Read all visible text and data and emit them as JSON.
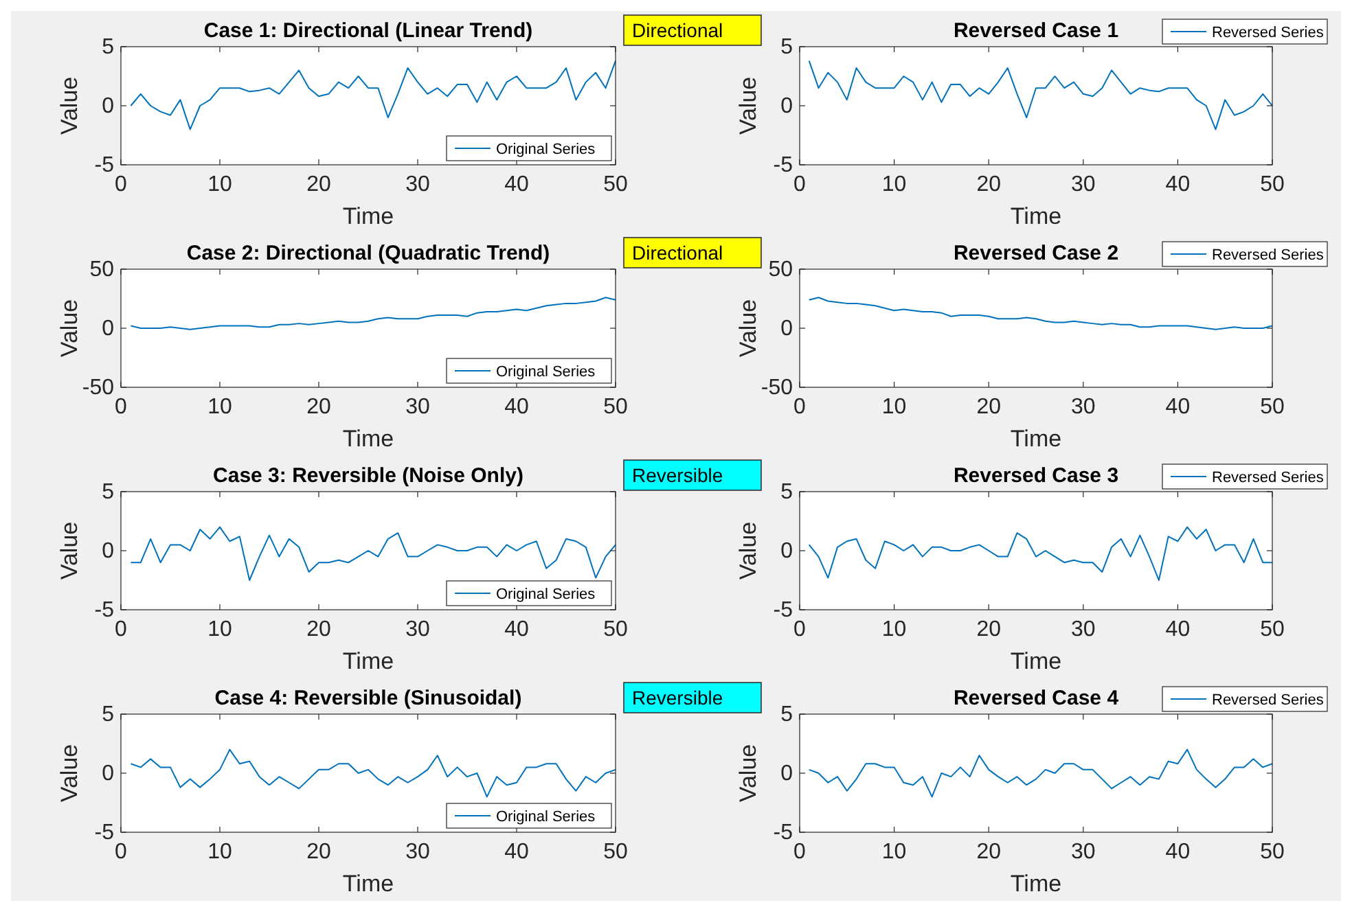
{
  "chart_data": [
    {
      "type": "line",
      "title": "Case 1: Directional (Linear Trend)",
      "xlabel": "Time",
      "ylabel": "Value",
      "x": [
        1,
        2,
        3,
        4,
        5,
        6,
        7,
        8,
        9,
        10,
        11,
        12,
        13,
        14,
        15,
        16,
        17,
        18,
        19,
        20,
        21,
        22,
        23,
        24,
        25,
        26,
        27,
        28,
        29,
        30,
        31,
        32,
        33,
        34,
        35,
        36,
        37,
        38,
        39,
        40,
        41,
        42,
        43,
        44,
        45,
        46,
        47,
        48,
        49,
        50
      ],
      "xlim": [
        0,
        50
      ],
      "xticks": [
        0,
        10,
        20,
        30,
        40,
        50
      ],
      "ylim": [
        -5,
        5
      ],
      "yticks": [
        -5,
        0,
        5
      ],
      "legend": "bottom right",
      "series": [
        {
          "name": "Original Series",
          "color": "#0072bd",
          "values": [
            0,
            1,
            0,
            -0.5,
            -0.8,
            0.5,
            -2,
            0,
            0.5,
            1.5,
            1.5,
            1.5,
            1.2,
            1.3,
            1.5,
            1,
            2,
            3,
            1.5,
            0.8,
            1,
            2,
            1.5,
            2.5,
            1.5,
            1.5,
            -1,
            1,
            3.2,
            2,
            1,
            1.5,
            0.8,
            1.8,
            1.8,
            0.3,
            2,
            0.5,
            2,
            2.5,
            1.5,
            1.5,
            1.5,
            2,
            3.2,
            0.5,
            2,
            2.8,
            1.5,
            3.8
          ]
        }
      ]
    },
    {
      "type": "line",
      "title": "Reversed Case 1",
      "xlabel": "Time",
      "ylabel": "Value",
      "x": [
        1,
        2,
        3,
        4,
        5,
        6,
        7,
        8,
        9,
        10,
        11,
        12,
        13,
        14,
        15,
        16,
        17,
        18,
        19,
        20,
        21,
        22,
        23,
        24,
        25,
        26,
        27,
        28,
        29,
        30,
        31,
        32,
        33,
        34,
        35,
        36,
        37,
        38,
        39,
        40,
        41,
        42,
        43,
        44,
        45,
        46,
        47,
        48,
        49,
        50
      ],
      "xlim": [
        0,
        50
      ],
      "xticks": [
        0,
        10,
        20,
        30,
        40,
        50
      ],
      "ylim": [
        -5,
        5
      ],
      "yticks": [
        -5,
        0,
        5
      ],
      "legend": "top right",
      "annotations": [
        "Directional"
      ],
      "series": [
        {
          "name": "Reversed Series",
          "color": "#0072bd",
          "values": [
            3.8,
            1.5,
            2.8,
            2,
            0.5,
            3.2,
            2,
            1.5,
            1.5,
            1.5,
            2.5,
            2,
            0.5,
            2,
            0.3,
            1.8,
            1.8,
            0.8,
            1.5,
            1,
            2,
            3.2,
            1,
            -1,
            1.5,
            1.5,
            2.5,
            1.5,
            2,
            1,
            0.8,
            1.5,
            3,
            2,
            1,
            1.5,
            1.3,
            1.2,
            1.5,
            1.5,
            1.5,
            0.5,
            0,
            -2,
            0.5,
            -0.8,
            -0.5,
            0,
            1,
            0
          ]
        }
      ]
    },
    {
      "type": "line",
      "title": "Case 2: Directional (Quadratic Trend)",
      "xlabel": "Time",
      "ylabel": "Value",
      "x": [
        1,
        2,
        3,
        4,
        5,
        6,
        7,
        8,
        9,
        10,
        11,
        12,
        13,
        14,
        15,
        16,
        17,
        18,
        19,
        20,
        21,
        22,
        23,
        24,
        25,
        26,
        27,
        28,
        29,
        30,
        31,
        32,
        33,
        34,
        35,
        36,
        37,
        38,
        39,
        40,
        41,
        42,
        43,
        44,
        45,
        46,
        47,
        48,
        49,
        50
      ],
      "xlim": [
        0,
        50
      ],
      "xticks": [
        0,
        10,
        20,
        30,
        40,
        50
      ],
      "ylim": [
        -50,
        50
      ],
      "yticks": [
        -50,
        0,
        50
      ],
      "legend": "bottom right",
      "series": [
        {
          "name": "Original Series",
          "color": "#0072bd",
          "values": [
            2,
            0,
            0,
            0,
            1,
            0,
            -1,
            0,
            1,
            2,
            2,
            2,
            2,
            1,
            1,
            3,
            3,
            4,
            3,
            4,
            5,
            6,
            5,
            5,
            6,
            8,
            9,
            8,
            8,
            8,
            10,
            11,
            11,
            11,
            10,
            13,
            14,
            14,
            15,
            16,
            15,
            17,
            19,
            20,
            21,
            21,
            22,
            23,
            26,
            24
          ]
        }
      ]
    },
    {
      "type": "line",
      "title": "Reversed Case 2",
      "xlabel": "Time",
      "ylabel": "Value",
      "x": [
        1,
        2,
        3,
        4,
        5,
        6,
        7,
        8,
        9,
        10,
        11,
        12,
        13,
        14,
        15,
        16,
        17,
        18,
        19,
        20,
        21,
        22,
        23,
        24,
        25,
        26,
        27,
        28,
        29,
        30,
        31,
        32,
        33,
        34,
        35,
        36,
        37,
        38,
        39,
        40,
        41,
        42,
        43,
        44,
        45,
        46,
        47,
        48,
        49,
        50
      ],
      "xlim": [
        0,
        50
      ],
      "xticks": [
        0,
        10,
        20,
        30,
        40,
        50
      ],
      "ylim": [
        -50,
        50
      ],
      "yticks": [
        -50,
        0,
        50
      ],
      "legend": "top right",
      "annotations": [
        "Directional"
      ],
      "series": [
        {
          "name": "Reversed Series",
          "color": "#0072bd",
          "values": [
            24,
            26,
            23,
            22,
            21,
            21,
            20,
            19,
            17,
            15,
            16,
            15,
            14,
            14,
            13,
            10,
            11,
            11,
            11,
            10,
            8,
            8,
            8,
            9,
            8,
            6,
            5,
            5,
            6,
            5,
            4,
            3,
            4,
            3,
            3,
            1,
            1,
            2,
            2,
            2,
            2,
            1,
            0,
            -1,
            0,
            1,
            0,
            0,
            0,
            2
          ]
        }
      ]
    },
    {
      "type": "line",
      "title": "Case 3: Reversible (Noise Only)",
      "xlabel": "Time",
      "ylabel": "Value",
      "x": [
        1,
        2,
        3,
        4,
        5,
        6,
        7,
        8,
        9,
        10,
        11,
        12,
        13,
        14,
        15,
        16,
        17,
        18,
        19,
        20,
        21,
        22,
        23,
        24,
        25,
        26,
        27,
        28,
        29,
        30,
        31,
        32,
        33,
        34,
        35,
        36,
        37,
        38,
        39,
        40,
        41,
        42,
        43,
        44,
        45,
        46,
        47,
        48,
        49,
        50
      ],
      "xlim": [
        0,
        50
      ],
      "xticks": [
        0,
        10,
        20,
        30,
        40,
        50
      ],
      "ylim": [
        -5,
        5
      ],
      "yticks": [
        -5,
        0,
        5
      ],
      "legend": "bottom right",
      "series": [
        {
          "name": "Original Series",
          "color": "#0072bd",
          "values": [
            -1,
            -1,
            1,
            -1,
            0.5,
            0.5,
            0,
            1.8,
            1,
            2,
            0.8,
            1.2,
            -2.5,
            -0.5,
            1.3,
            -0.5,
            1,
            0.3,
            -1.8,
            -1,
            -1,
            -0.8,
            -1,
            -0.5,
            0,
            -0.5,
            1,
            1.5,
            -0.5,
            -0.5,
            0,
            0.5,
            0.3,
            0,
            0,
            0.3,
            0.3,
            -0.5,
            0.5,
            0,
            0.5,
            0.8,
            -1.5,
            -0.8,
            1,
            0.8,
            0.3,
            -2.3,
            -0.5,
            0.5
          ]
        }
      ]
    },
    {
      "type": "line",
      "title": "Reversed Case 3",
      "xlabel": "Time",
      "ylabel": "Value",
      "x": [
        1,
        2,
        3,
        4,
        5,
        6,
        7,
        8,
        9,
        10,
        11,
        12,
        13,
        14,
        15,
        16,
        17,
        18,
        19,
        20,
        21,
        22,
        23,
        24,
        25,
        26,
        27,
        28,
        29,
        30,
        31,
        32,
        33,
        34,
        35,
        36,
        37,
        38,
        39,
        40,
        41,
        42,
        43,
        44,
        45,
        46,
        47,
        48,
        49,
        50
      ],
      "xlim": [
        0,
        50
      ],
      "xticks": [
        0,
        10,
        20,
        30,
        40,
        50
      ],
      "ylim": [
        -5,
        5
      ],
      "yticks": [
        -5,
        0,
        5
      ],
      "legend": "top right",
      "annotations": [
        "Reversible"
      ],
      "series": [
        {
          "name": "Reversed Series",
          "color": "#0072bd",
          "values": [
            0.5,
            -0.5,
            -2.3,
            0.3,
            0.8,
            1,
            -0.8,
            -1.5,
            0.8,
            0.5,
            0,
            0.5,
            -0.5,
            0.3,
            0.3,
            0,
            0,
            0.3,
            0.5,
            0,
            -0.5,
            -0.5,
            1.5,
            1,
            -0.5,
            0,
            -0.5,
            -1,
            -0.8,
            -1,
            -1,
            -1.8,
            0.3,
            1,
            -0.5,
            1.3,
            -0.5,
            -2.5,
            1.2,
            0.8,
            2,
            1,
            1.8,
            0,
            0.5,
            0.5,
            -1,
            1,
            -1,
            -1
          ]
        }
      ]
    },
    {
      "type": "line",
      "title": "Case 4: Reversible (Sinusoidal)",
      "xlabel": "Time",
      "ylabel": "Value",
      "x": [
        1,
        2,
        3,
        4,
        5,
        6,
        7,
        8,
        9,
        10,
        11,
        12,
        13,
        14,
        15,
        16,
        17,
        18,
        19,
        20,
        21,
        22,
        23,
        24,
        25,
        26,
        27,
        28,
        29,
        30,
        31,
        32,
        33,
        34,
        35,
        36,
        37,
        38,
        39,
        40,
        41,
        42,
        43,
        44,
        45,
        46,
        47,
        48,
        49,
        50
      ],
      "xlim": [
        0,
        50
      ],
      "xticks": [
        0,
        10,
        20,
        30,
        40,
        50
      ],
      "ylim": [
        -5,
        5
      ],
      "yticks": [
        -5,
        0,
        5
      ],
      "legend": "bottom right",
      "series": [
        {
          "name": "Original Series",
          "color": "#0072bd",
          "values": [
            0.8,
            0.5,
            1.2,
            0.5,
            0.5,
            -1.2,
            -0.5,
            -1.2,
            -0.5,
            0.3,
            2,
            0.8,
            1,
            -0.3,
            -1,
            -0.3,
            -0.8,
            -1.3,
            -0.5,
            0.3,
            0.3,
            0.8,
            0.8,
            0,
            0.3,
            -0.5,
            -1,
            -0.3,
            -0.8,
            -0.3,
            0.3,
            1.5,
            -0.3,
            0.5,
            -0.3,
            0,
            -2,
            -0.3,
            -1,
            -0.8,
            0.5,
            0.5,
            0.8,
            0.8,
            -0.5,
            -1.5,
            -0.3,
            -0.8,
            0,
            0.3
          ]
        }
      ]
    },
    {
      "type": "line",
      "title": "Reversed Case 4",
      "xlabel": "Time",
      "ylabel": "Value",
      "x": [
        1,
        2,
        3,
        4,
        5,
        6,
        7,
        8,
        9,
        10,
        11,
        12,
        13,
        14,
        15,
        16,
        17,
        18,
        19,
        20,
        21,
        22,
        23,
        24,
        25,
        26,
        27,
        28,
        29,
        30,
        31,
        32,
        33,
        34,
        35,
        36,
        37,
        38,
        39,
        40,
        41,
        42,
        43,
        44,
        45,
        46,
        47,
        48,
        49,
        50
      ],
      "xlim": [
        0,
        50
      ],
      "xticks": [
        0,
        10,
        20,
        30,
        40,
        50
      ],
      "ylim": [
        -5,
        5
      ],
      "yticks": [
        -5,
        0,
        5
      ],
      "legend": "top right",
      "annotations": [
        "Reversible"
      ],
      "series": [
        {
          "name": "Reversed Series",
          "color": "#0072bd",
          "values": [
            0.3,
            0,
            -0.8,
            -0.3,
            -1.5,
            -0.5,
            0.8,
            0.8,
            0.5,
            0.5,
            -0.8,
            -1,
            -0.3,
            -2,
            0,
            -0.3,
            0.5,
            -0.3,
            1.5,
            0.3,
            -0.3,
            -0.8,
            -0.3,
            -1,
            -0.5,
            0.3,
            0,
            0.8,
            0.8,
            0.3,
            0.3,
            -0.5,
            -1.3,
            -0.8,
            -0.3,
            -1,
            -0.3,
            -0.5,
            1,
            0.8,
            2,
            0.3,
            -0.5,
            -1.2,
            -0.5,
            0.5,
            0.5,
            1.2,
            0.5,
            0.8
          ]
        }
      ]
    }
  ]
}
